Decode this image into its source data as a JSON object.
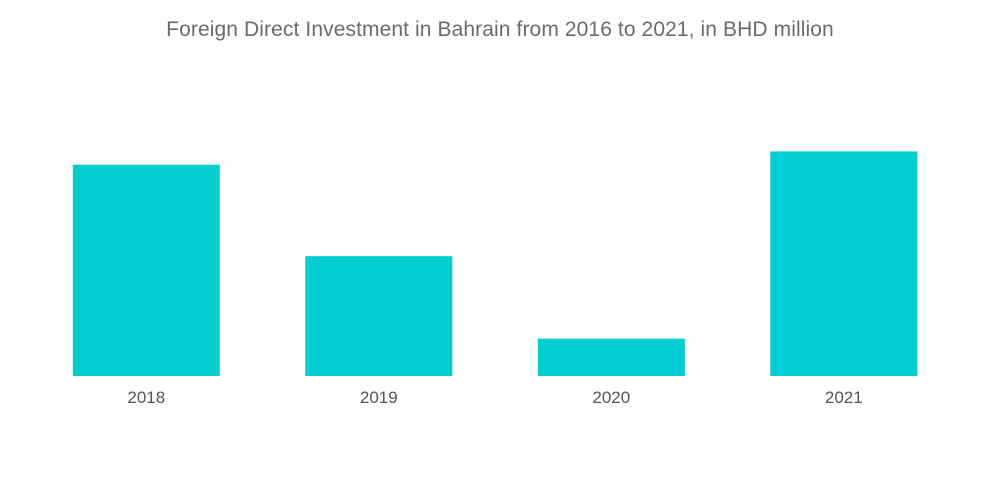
{
  "chart_data": {
    "type": "bar",
    "title": "Foreign Direct Investment in Bahrain from 2016 to 2021, in BHD million",
    "categories": [
      "2018",
      "2019",
      "2020",
      "2021"
    ],
    "values": [
      635,
      360,
      112,
      675
    ],
    "xlabel": "",
    "ylabel": "",
    "ylim": [
      0,
      1130
    ],
    "grid": false,
    "legend": "none",
    "bar_color": "#00CED1"
  }
}
